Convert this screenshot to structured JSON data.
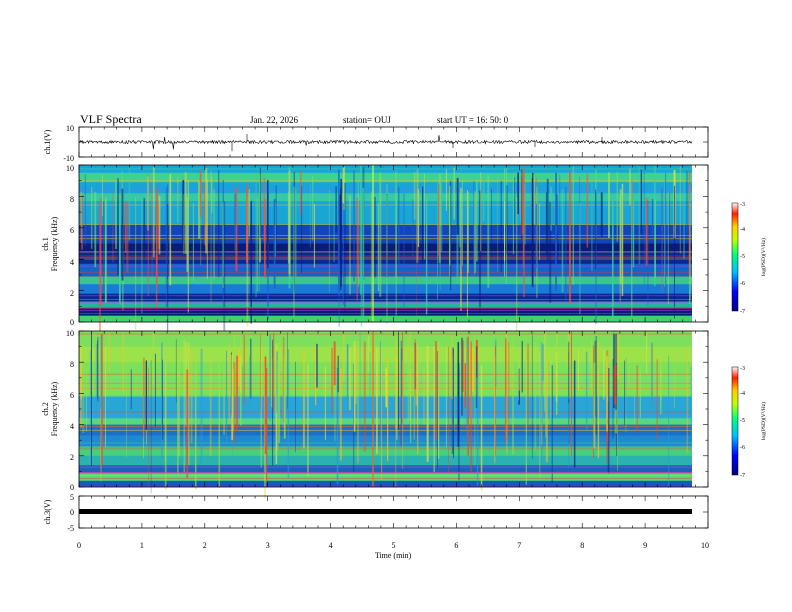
{
  "header": {
    "title": "VLF Spectra",
    "date": "Jan. 22, 2026",
    "station": "station= OUJ",
    "start": "start  UT =   16: 50: 0"
  },
  "chart_data": [
    {
      "type": "line",
      "name": "ch1-waveform",
      "ylabel": "ch.1(V)",
      "ylim": [
        -10,
        10
      ],
      "yticks": [
        "10",
        "-10"
      ],
      "xlim": [
        0,
        10
      ],
      "baseline": 0
    },
    {
      "type": "heatmap",
      "name": "ch1-spectrogram",
      "ylabel": "ch.1\nFrequency (kHz)",
      "ylabel_line1": "ch.1",
      "ylabel_line2": "Frequency (kHz)",
      "ylim": [
        0,
        10
      ],
      "yticks": [
        "0",
        "2",
        "4",
        "6",
        "8",
        "10"
      ],
      "xlim": [
        0,
        9.85
      ],
      "colorbar": {
        "label": "log(PSD)(V²/Hz)",
        "range": [
          -7,
          -3
        ],
        "ticks": [
          "-3",
          "-4",
          "-5",
          "-6",
          "-7"
        ]
      }
    },
    {
      "type": "heatmap",
      "name": "ch2-spectrogram",
      "ylabel_line1": "ch.2",
      "ylabel_line2": "Frequency (kHz)",
      "ylim": [
        0,
        10
      ],
      "yticks": [
        "0",
        "2",
        "4",
        "6",
        "8",
        "10"
      ],
      "xlim": [
        0,
        9.85
      ],
      "colorbar": {
        "label": "log(PSD)(V²/Hz)",
        "range": [
          -7,
          -3
        ],
        "ticks": [
          "-3",
          "-4",
          "-5",
          "-6",
          "-7"
        ]
      }
    },
    {
      "type": "line",
      "name": "ch3-waveform",
      "ylabel": "ch.3(V)",
      "ylim": [
        -5,
        5
      ],
      "yticks": [
        "5",
        "0",
        "-5"
      ],
      "xlim": [
        0,
        10
      ],
      "baseline": -1
    }
  ],
  "xaxis": {
    "label": "Time (min)",
    "ticks": [
      "0",
      "1",
      "2",
      "3",
      "4",
      "5",
      "6",
      "7",
      "8",
      "9",
      "10"
    ]
  },
  "colors": {
    "ink": "#000000"
  }
}
